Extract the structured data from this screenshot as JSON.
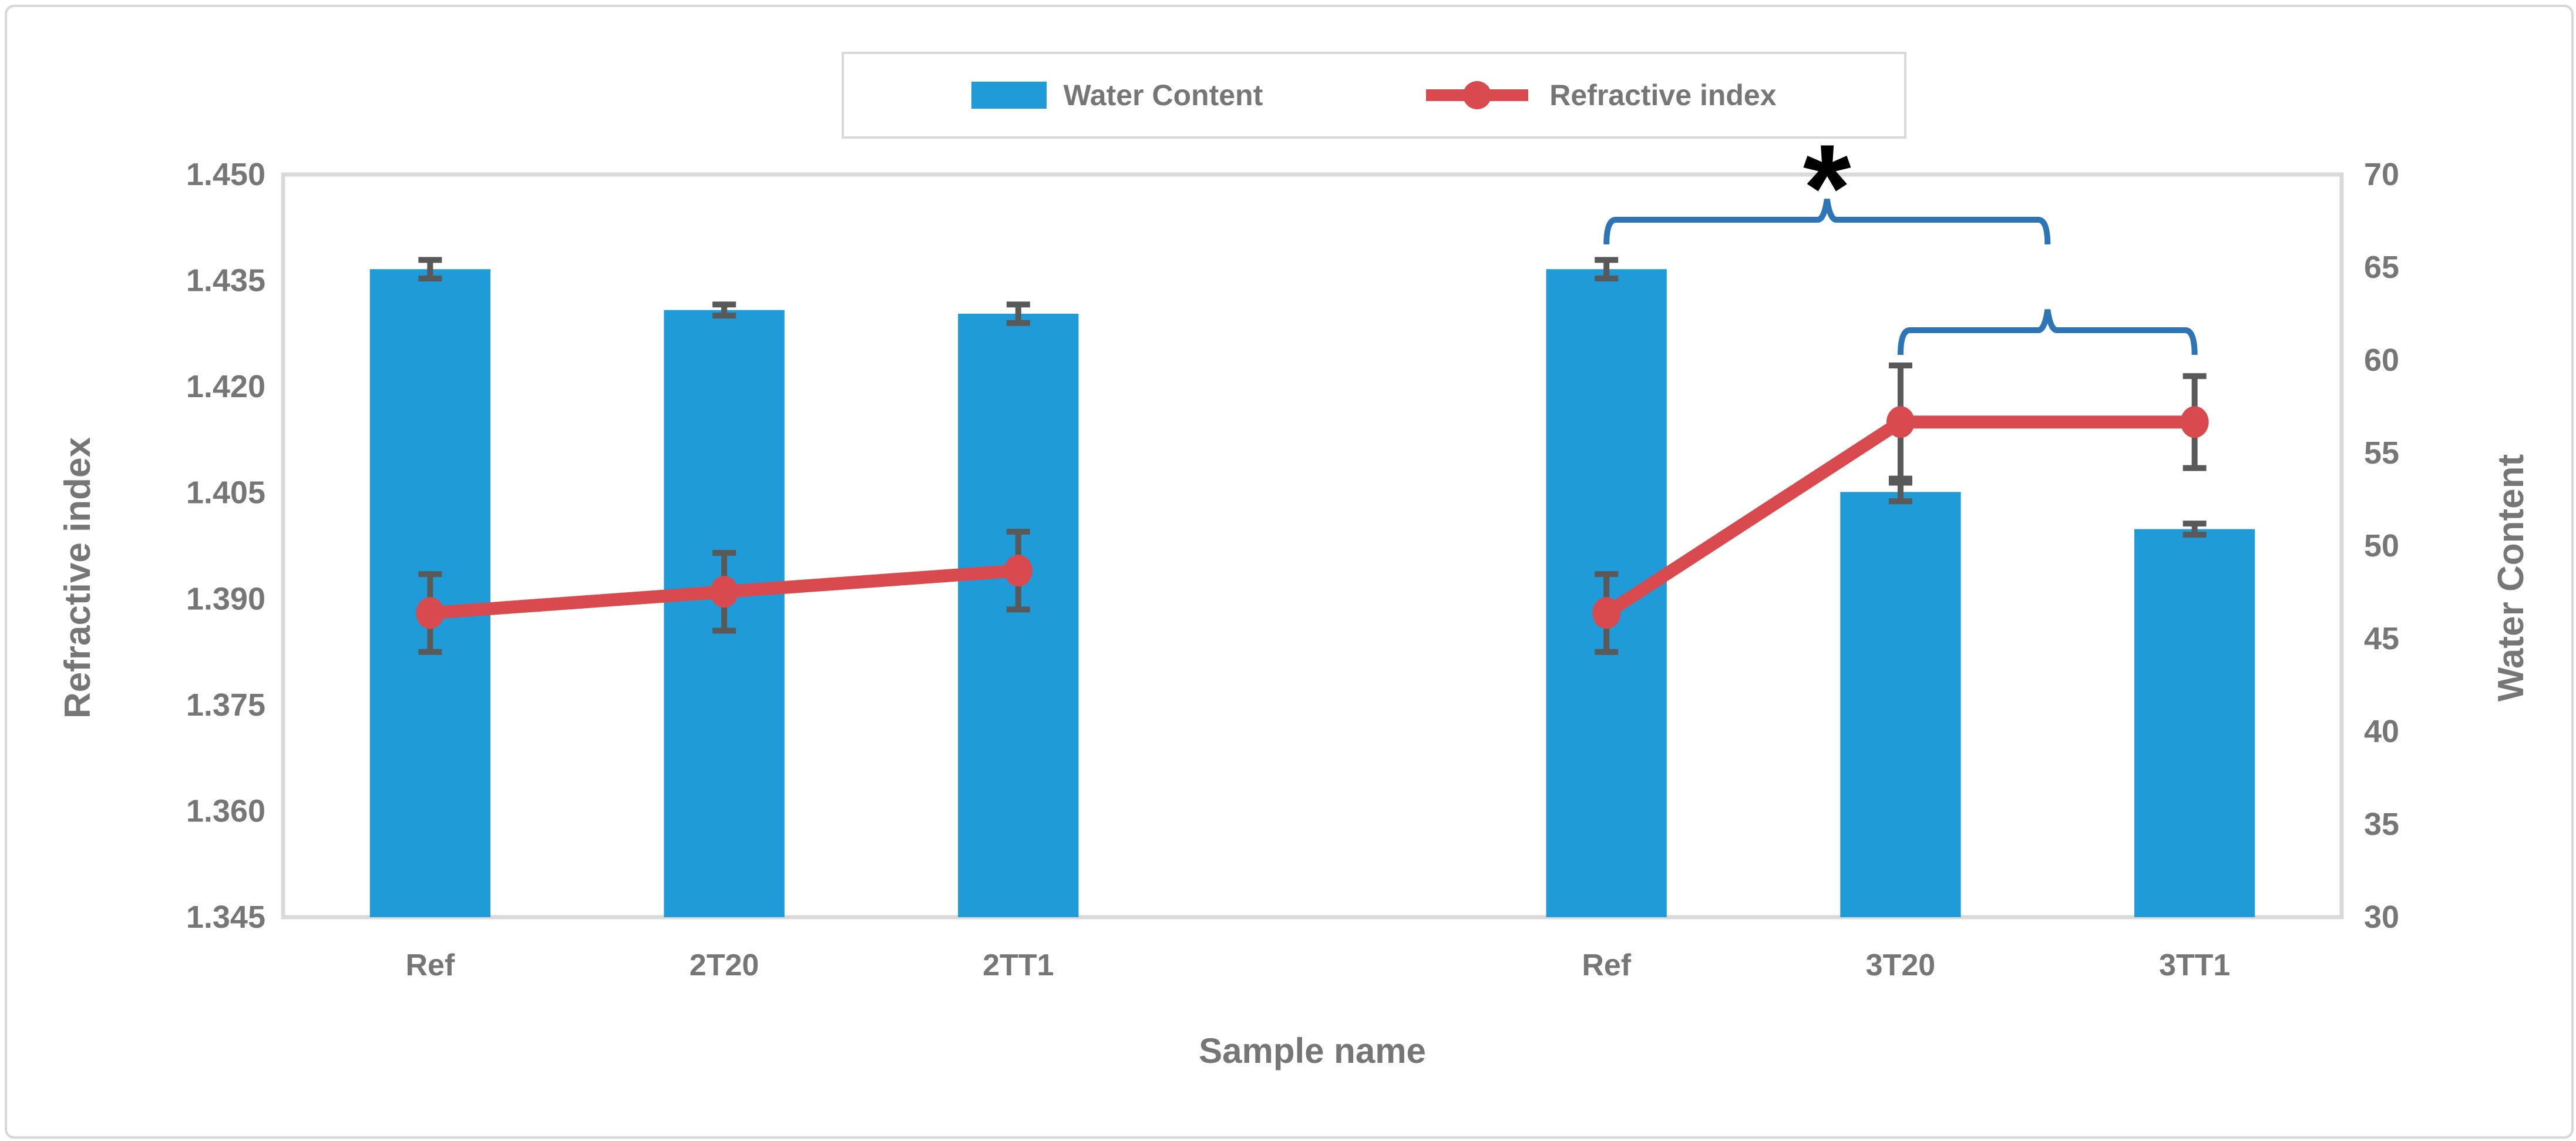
{
  "legend": {
    "items": [
      {
        "label": "Water Content",
        "swatch": "bar-swatch",
        "color": "#1f9bd7"
      },
      {
        "label": "Refractive index",
        "swatch": "line-dot-swatch",
        "color": "#d94a4f"
      }
    ]
  },
  "axes": {
    "left": {
      "title": "Refractive index",
      "ticks": [
        "1.450",
        "1.435",
        "1.420",
        "1.405",
        "1.390",
        "1.375",
        "1.360",
        "1.345"
      ]
    },
    "right": {
      "title": "Water Content",
      "ticks": [
        "70",
        "65",
        "60",
        "55",
        "50",
        "45",
        "40",
        "35",
        "30"
      ]
    },
    "x": {
      "title": "Sample name",
      "slot_labels": [
        "Ref",
        "2T20",
        "2TT1",
        "",
        "Ref",
        "3T20",
        "3TT1"
      ]
    }
  },
  "chart_data": {
    "type": "bar+line dual-axis",
    "title": "",
    "xlabel": "Sample name",
    "categories": [
      "Ref",
      "2T20",
      "2TT1",
      "Ref",
      "3T20",
      "3TT1"
    ],
    "slot_indices": [
      0,
      1,
      2,
      4,
      5,
      6
    ],
    "n_slots": 7,
    "ylim_left": [
      1.345,
      1.45
    ],
    "ylim_right": [
      30,
      70
    ],
    "grid": false,
    "legend_position": "top-center",
    "series": [
      {
        "name": "Water Content",
        "type": "bar",
        "axis": "right",
        "color": "#1f9bd7",
        "values": [
          64.9,
          62.7,
          62.5,
          64.9,
          52.9,
          50.9
        ],
        "errors": [
          0.5,
          0.3,
          0.5,
          0.5,
          0.5,
          0.3
        ]
      },
      {
        "name": "Refractive index",
        "type": "line",
        "axis": "left",
        "color": "#d94a4f",
        "values": [
          1.388,
          1.391,
          1.394,
          1.388,
          1.415,
          1.415
        ],
        "errors": [
          0.0055,
          0.0055,
          0.0055,
          0.0055,
          0.008,
          0.0065
        ],
        "segments": [
          [
            0,
            1,
            2
          ],
          [
            3,
            4,
            5
          ]
        ]
      }
    ],
    "error_bar_color": "#595959",
    "significance": {
      "symbol": "*",
      "bracket_color": "#2e75b6",
      "brackets": [
        {
          "compares": [
            "Ref",
            "3T20+3TT1 group"
          ],
          "from_slot": 4,
          "to_mid_of_slots": [
            5,
            6
          ],
          "tier": "upper",
          "label": "*"
        },
        {
          "compares": [
            "3T20",
            "3TT1"
          ],
          "from_slot": 5,
          "to_slot": 6,
          "tier": "lower",
          "label": ""
        }
      ]
    }
  }
}
